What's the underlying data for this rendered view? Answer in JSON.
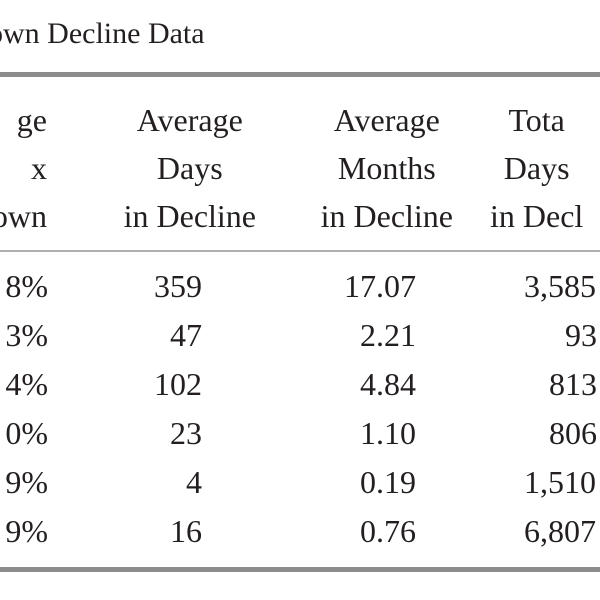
{
  "caption": "own Decline Data",
  "headers": [
    {
      "lines": [
        "ge",
        "x",
        "own"
      ]
    },
    {
      "lines": [
        "Average",
        "Days",
        "in Decline"
      ]
    },
    {
      "lines": [
        "Average",
        "Months",
        "in Decline"
      ]
    },
    {
      "lines": [
        "Tota",
        "Days",
        "in Decl"
      ]
    }
  ],
  "rows": [
    {
      "c0": "8%",
      "c1": "359",
      "c2": "17.07",
      "c3": "3,585"
    },
    {
      "c0": "3%",
      "c1": "47",
      "c2": "2.21",
      "c3": "93"
    },
    {
      "c0": "4%",
      "c1": "102",
      "c2": "4.84",
      "c3": "813"
    },
    {
      "c0": "0%",
      "c1": "23",
      "c2": "1.10",
      "c3": "806"
    },
    {
      "c0": "9%",
      "c1": "4",
      "c2": "0.19",
      "c3": "1,510"
    },
    {
      "c0": "9%",
      "c1": "16",
      "c2": "0.76",
      "c3": "6,807"
    }
  ]
}
